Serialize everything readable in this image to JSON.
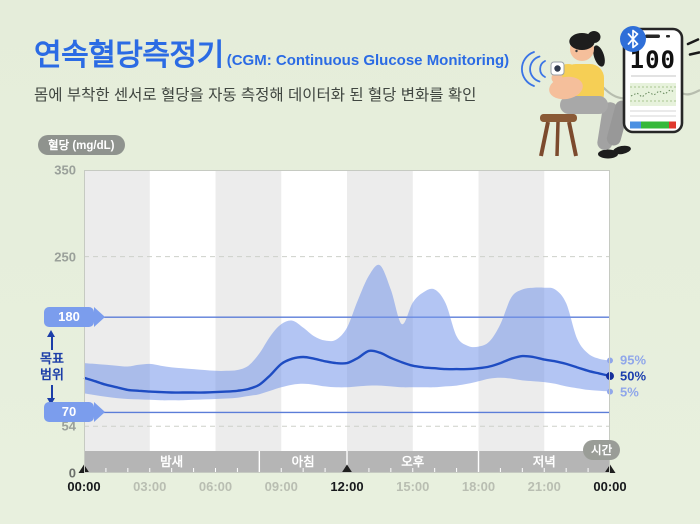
{
  "header": {
    "title": "연속혈당측정기",
    "title_suffix": "(CGM: Continuous Glucose Monitoring)",
    "subtitle": "몸에 부착한 센서로 혈당을 자동 측정해 데이터화 된 혈당 변화를 확인"
  },
  "illustration": {
    "phone_value": "100",
    "icons": [
      "bluetooth-icon",
      "glucose-sensor-icon",
      "signal-waves-icon",
      "alert-dashes-icon",
      "glucose-wave-line"
    ]
  },
  "chart": {
    "unit_badge": "혈당 (mg/dL)",
    "time_badge": "시간",
    "tags": {
      "high": "180",
      "low": "70"
    },
    "target_range": {
      "lines": [
        "목표",
        "범위"
      ]
    }
  },
  "colors": {
    "accent_blue": "#2b6be4",
    "band": "#7496ea",
    "median": "#1e4cc2",
    "median_dot": "#16309c",
    "light_blue_label": "#90a7ea",
    "ref_line": "#5b7dd8",
    "dashed_line": "#cdd0c9",
    "stripe": "#ececec",
    "period_band": "#b5b5b5",
    "tag": "#7b9ded",
    "target_text": "#1c3ea8",
    "badge": "#8f938e",
    "bluetooth": "#2f6fd8",
    "bar_blue": "#4a90e2",
    "bar_green": "#35b83a",
    "bar_red": "#e0392e"
  },
  "chart_data": {
    "type": "area",
    "x_unit": "hours",
    "xlim": [
      0,
      24
    ],
    "ylim": [
      0,
      350
    ],
    "x": [
      0,
      0.5,
      1,
      1.5,
      2,
      2.5,
      3,
      3.5,
      4,
      4.5,
      5,
      5.5,
      6,
      6.5,
      7,
      7.5,
      8,
      8.5,
      9,
      9.5,
      10,
      10.5,
      11,
      11.5,
      12,
      12.5,
      13,
      13.5,
      14,
      14.5,
      15,
      15.5,
      16,
      16.5,
      17,
      17.5,
      18,
      18.5,
      19,
      19.5,
      20,
      20.5,
      21,
      21.5,
      22,
      22.5,
      23,
      23.5,
      24
    ],
    "series": [
      {
        "name": "95%",
        "role": "upper",
        "values": [
          127,
          126,
          125,
          124,
          123,
          125,
          126,
          124,
          122,
          121,
          120,
          119,
          118,
          118,
          119,
          124,
          138,
          158,
          172,
          176,
          168,
          158,
          153,
          154,
          168,
          200,
          228,
          240,
          212,
          172,
          197,
          209,
          212,
          196,
          158,
          147,
          146,
          152,
          172,
          203,
          212,
          214,
          214,
          212,
          196,
          155,
          138,
          132,
          130
        ]
      },
      {
        "name": "50%",
        "role": "median",
        "values": [
          110,
          106,
          102,
          99,
          96,
          95,
          94,
          93.5,
          93,
          93,
          93,
          93,
          93.5,
          94,
          95,
          97,
          102,
          113,
          126,
          132,
          134,
          132,
          129,
          127,
          127,
          133,
          141,
          139,
          133,
          128,
          124,
          122,
          121,
          120,
          120,
          120,
          121,
          123,
          127,
          132,
          135,
          134,
          131,
          129,
          126,
          122,
          118,
          115,
          112
        ]
      },
      {
        "name": "5%",
        "role": "lower",
        "values": [
          92,
          90,
          88,
          86.5,
          85.5,
          85,
          84.5,
          84,
          84,
          84,
          84.5,
          85,
          85.5,
          86,
          87,
          89,
          91,
          95,
          99,
          102,
          103,
          102,
          100,
          99,
          99,
          100,
          101,
          101,
          100,
          99,
          99,
          99,
          99,
          100,
          101,
          103,
          106,
          109,
          110,
          109,
          107,
          106,
          105,
          103,
          100,
          98,
          96,
          95,
          94
        ]
      }
    ],
    "y_ticks": [
      {
        "value": 350,
        "label": "350"
      },
      {
        "value": 250,
        "label": "250"
      },
      {
        "value": 180,
        "label": "180",
        "tag": true
      },
      {
        "value": 70,
        "label": "70",
        "tag": true
      },
      {
        "value": 54,
        "label": "54"
      },
      {
        "value": 0,
        "label": "0"
      }
    ],
    "x_ticks": [
      {
        "hour": 0,
        "label": "00:00",
        "bold": true
      },
      {
        "hour": 3,
        "label": "03:00",
        "bold": false
      },
      {
        "hour": 6,
        "label": "06:00",
        "bold": false
      },
      {
        "hour": 9,
        "label": "09:00",
        "bold": false
      },
      {
        "hour": 12,
        "label": "12:00",
        "bold": true
      },
      {
        "hour": 15,
        "label": "15:00",
        "bold": false
      },
      {
        "hour": 18,
        "label": "18:00",
        "bold": false
      },
      {
        "hour": 21,
        "label": "21:00",
        "bold": false
      },
      {
        "hour": 24,
        "label": "00:00",
        "bold": true
      }
    ],
    "reference_lines": [
      {
        "value": 250,
        "style": "dashed"
      },
      {
        "value": 180,
        "style": "solid"
      },
      {
        "value": 70,
        "style": "solid"
      },
      {
        "value": 54,
        "style": "dashed"
      }
    ],
    "periods": [
      {
        "label": "밤새",
        "start": 0,
        "end": 8
      },
      {
        "label": "아침",
        "start": 8,
        "end": 12
      },
      {
        "label": "오후",
        "start": 12,
        "end": 18
      },
      {
        "label": "저녁",
        "start": 18,
        "end": 24
      }
    ],
    "marker_hours": [
      0,
      12,
      24
    ],
    "stripe_interval_hours": 3,
    "legend_position": "right",
    "grid": "stripes"
  }
}
